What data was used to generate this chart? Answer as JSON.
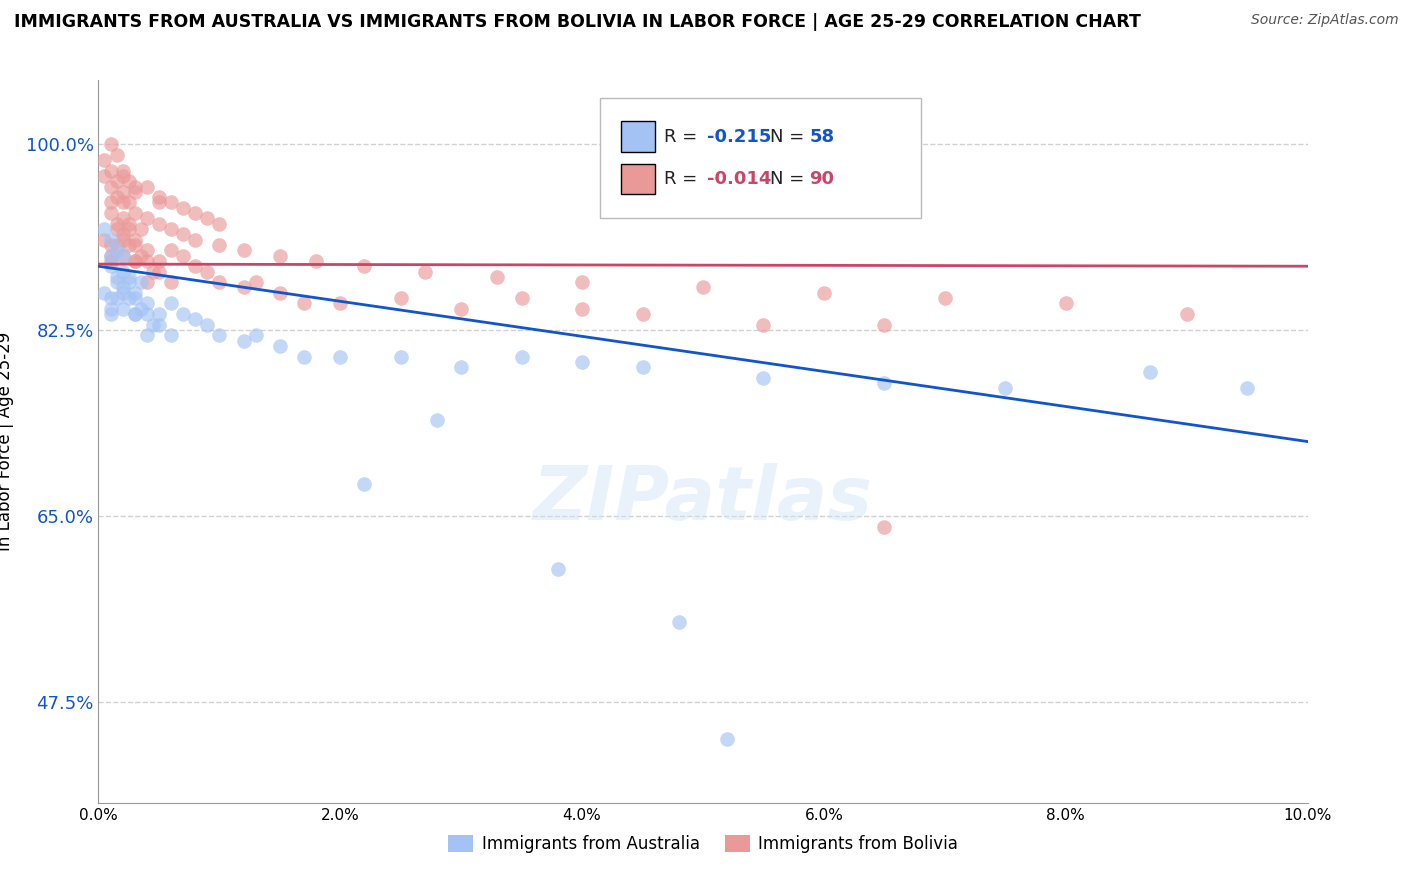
{
  "title": "IMMIGRANTS FROM AUSTRALIA VS IMMIGRANTS FROM BOLIVIA IN LABOR FORCE | AGE 25-29 CORRELATION CHART",
  "source": "Source: ZipAtlas.com",
  "ylabel": "In Labor Force | Age 25-29",
  "xlim": [
    0.0,
    0.1
  ],
  "ylim": [
    0.38,
    1.06
  ],
  "yticks": [
    0.475,
    0.65,
    0.825,
    1.0
  ],
  "ytick_labels": [
    "47.5%",
    "65.0%",
    "82.5%",
    "100.0%"
  ],
  "xticks": [
    0.0,
    0.02,
    0.04,
    0.06,
    0.08,
    0.1
  ],
  "xtick_labels": [
    "0.0%",
    "2.0%",
    "4.0%",
    "6.0%",
    "8.0%",
    "10.0%"
  ],
  "australia_r": "-0.215",
  "australia_n": "58",
  "bolivia_r": "-0.014",
  "bolivia_n": "90",
  "australia_color": "#a4c2f4",
  "bolivia_color": "#ea9999",
  "australia_line_color": "#1155cc",
  "bolivia_line_color": "#cc4466",
  "legend_label_australia": "Immigrants from Australia",
  "legend_label_bolivia": "Immigrants from Bolivia",
  "australia_line_x0": 0.0,
  "australia_line_y0": 0.885,
  "australia_line_x1": 0.1,
  "australia_line_y1": 0.72,
  "bolivia_line_x0": 0.0,
  "bolivia_line_y0": 0.887,
  "bolivia_line_x1": 0.1,
  "bolivia_line_y1": 0.885,
  "australia_x": [
    0.0005,
    0.001,
    0.001,
    0.0015,
    0.001,
    0.0015,
    0.002,
    0.002,
    0.0025,
    0.002,
    0.0015,
    0.001,
    0.001,
    0.0005,
    0.001,
    0.0015,
    0.002,
    0.002,
    0.0025,
    0.003,
    0.003,
    0.0035,
    0.003,
    0.0025,
    0.003,
    0.0035,
    0.004,
    0.004,
    0.0045,
    0.004,
    0.005,
    0.005,
    0.006,
    0.006,
    0.007,
    0.008,
    0.009,
    0.01,
    0.012,
    0.013,
    0.015,
    0.017,
    0.02,
    0.025,
    0.03,
    0.035,
    0.04,
    0.045,
    0.055,
    0.065,
    0.075,
    0.087,
    0.095,
    0.038,
    0.048,
    0.022,
    0.028,
    0.052
  ],
  "australia_y": [
    0.92,
    0.91,
    0.895,
    0.9,
    0.885,
    0.875,
    0.88,
    0.895,
    0.875,
    0.86,
    0.87,
    0.855,
    0.84,
    0.86,
    0.845,
    0.855,
    0.865,
    0.845,
    0.87,
    0.86,
    0.855,
    0.87,
    0.84,
    0.855,
    0.84,
    0.845,
    0.85,
    0.84,
    0.83,
    0.82,
    0.84,
    0.83,
    0.85,
    0.82,
    0.84,
    0.835,
    0.83,
    0.82,
    0.815,
    0.82,
    0.81,
    0.8,
    0.8,
    0.8,
    0.79,
    0.8,
    0.795,
    0.79,
    0.78,
    0.775,
    0.77,
    0.785,
    0.77,
    0.6,
    0.55,
    0.68,
    0.74,
    0.44
  ],
  "bolivia_x": [
    0.0005,
    0.001,
    0.001,
    0.0015,
    0.001,
    0.0015,
    0.002,
    0.002,
    0.0025,
    0.002,
    0.0015,
    0.001,
    0.001,
    0.0005,
    0.001,
    0.0015,
    0.002,
    0.002,
    0.0025,
    0.003,
    0.003,
    0.0035,
    0.003,
    0.0025,
    0.003,
    0.0035,
    0.004,
    0.004,
    0.0045,
    0.004,
    0.005,
    0.005,
    0.006,
    0.006,
    0.007,
    0.008,
    0.009,
    0.01,
    0.012,
    0.013,
    0.015,
    0.017,
    0.02,
    0.025,
    0.03,
    0.035,
    0.04,
    0.045,
    0.055,
    0.065,
    0.001,
    0.0015,
    0.002,
    0.002,
    0.0025,
    0.003,
    0.003,
    0.004,
    0.005,
    0.005,
    0.006,
    0.007,
    0.008,
    0.009,
    0.01,
    0.0005,
    0.001,
    0.0015,
    0.002,
    0.0025,
    0.003,
    0.004,
    0.005,
    0.006,
    0.007,
    0.008,
    0.01,
    0.012,
    0.015,
    0.018,
    0.022,
    0.027,
    0.033,
    0.04,
    0.05,
    0.06,
    0.07,
    0.08,
    0.09,
    0.065
  ],
  "bolivia_y": [
    0.97,
    0.96,
    0.945,
    0.95,
    0.935,
    0.925,
    0.93,
    0.945,
    0.925,
    0.91,
    0.92,
    0.905,
    0.89,
    0.91,
    0.895,
    0.905,
    0.915,
    0.895,
    0.92,
    0.91,
    0.905,
    0.92,
    0.89,
    0.905,
    0.89,
    0.895,
    0.9,
    0.89,
    0.88,
    0.87,
    0.89,
    0.88,
    0.9,
    0.87,
    0.895,
    0.885,
    0.88,
    0.87,
    0.865,
    0.87,
    0.86,
    0.85,
    0.85,
    0.855,
    0.845,
    0.855,
    0.845,
    0.84,
    0.83,
    0.83,
    1.0,
    0.99,
    0.975,
    0.97,
    0.965,
    0.96,
    0.955,
    0.96,
    0.95,
    0.945,
    0.945,
    0.94,
    0.935,
    0.93,
    0.925,
    0.985,
    0.975,
    0.965,
    0.955,
    0.945,
    0.935,
    0.93,
    0.925,
    0.92,
    0.915,
    0.91,
    0.905,
    0.9,
    0.895,
    0.89,
    0.885,
    0.88,
    0.875,
    0.87,
    0.865,
    0.86,
    0.855,
    0.85,
    0.84,
    0.64
  ]
}
